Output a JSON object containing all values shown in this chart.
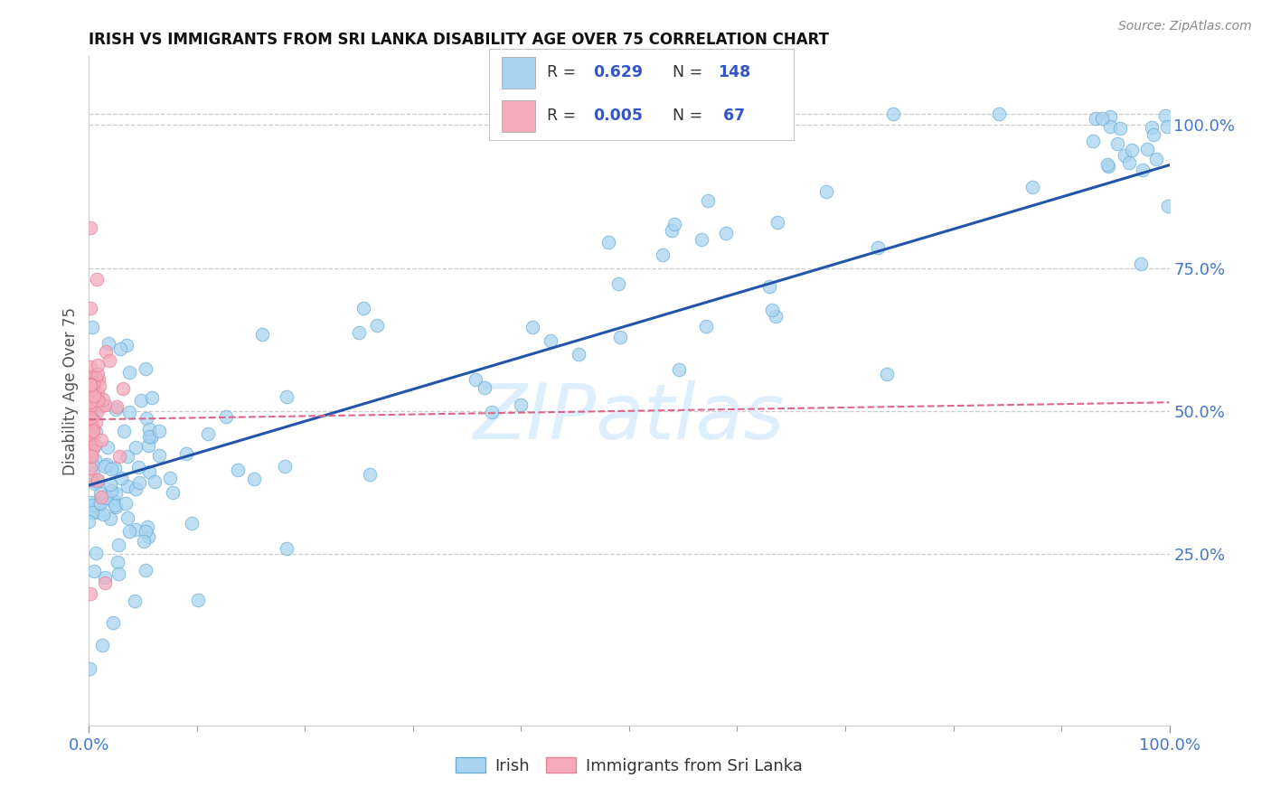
{
  "title": "IRISH VS IMMIGRANTS FROM SRI LANKA DISABILITY AGE OVER 75 CORRELATION CHART",
  "source": "Source: ZipAtlas.com",
  "ylabel": "Disability Age Over 75",
  "legend_labels": [
    "Irish",
    "Immigrants from Sri Lanka"
  ],
  "legend_R": [
    "0.629",
    "0.005"
  ],
  "legend_N": [
    "148",
    " 67"
  ],
  "blue_color": "#A8D4F0",
  "pink_color": "#F4AABB",
  "blue_edge_color": "#6AAED6",
  "pink_edge_color": "#E8809A",
  "blue_line_color": "#2255AA",
  "pink_line_color": "#DD6688",
  "watermark_color": "#DDEEFF",
  "title_color": "#111111",
  "tick_color": "#4477CC",
  "ylabel_color": "#555555",
  "grid_color": "#CCCCCC",
  "source_color": "#888888",
  "background_color": "#ffffff",
  "legend_text_color": "#333333",
  "legend_value_color": "#3355CC",
  "xlim": [
    0.0,
    1.0
  ],
  "ylim": [
    -0.05,
    1.12
  ],
  "ytick_values": [
    1.0,
    0.75,
    0.5,
    0.25
  ],
  "ytick_labels": [
    "100.0%",
    "75.0%",
    "50.0%",
    "25.0%"
  ],
  "blue_trend": [
    0.0,
    1.0,
    0.37,
    0.93
  ],
  "pink_trend": [
    0.0,
    1.0,
    0.485,
    0.515
  ]
}
